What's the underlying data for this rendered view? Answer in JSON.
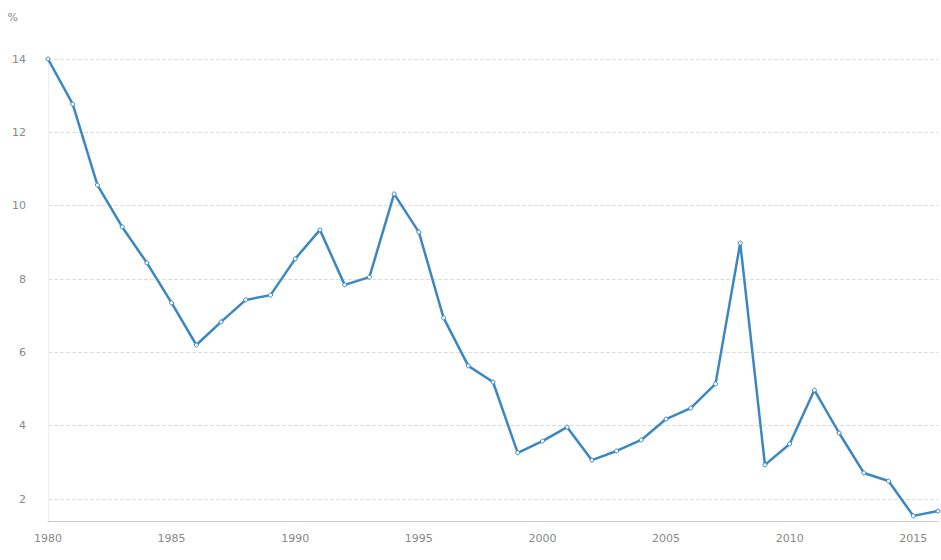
{
  "chart_data": {
    "type": "line",
    "y_label": "%",
    "x": [
      1980,
      1981,
      1982,
      1983,
      1984,
      1985,
      1986,
      1987,
      1988,
      1989,
      1990,
      1991,
      1992,
      1993,
      1994,
      1995,
      1996,
      1997,
      1998,
      1999,
      2000,
      2001,
      2002,
      2003,
      2004,
      2005,
      2006,
      2007,
      2008,
      2009,
      2010,
      2011,
      2012,
      2013,
      2014,
      2015,
      2016
    ],
    "values": [
      14.0,
      12.77,
      10.56,
      9.42,
      8.44,
      7.35,
      6.2,
      6.83,
      7.43,
      7.56,
      8.55,
      9.34,
      7.84,
      8.05,
      10.32,
      9.28,
      6.94,
      5.63,
      5.19,
      3.26,
      3.58,
      3.96,
      3.06,
      3.31,
      3.61,
      4.18,
      4.48,
      5.14,
      8.98,
      2.93,
      3.5,
      4.97,
      3.8,
      2.71,
      2.49,
      1.54,
      1.67
    ],
    "color": "#3a87c2",
    "marker": "circle",
    "xlim": [
      1980,
      2016
    ],
    "xticks": [
      1980,
      1985,
      1990,
      1995,
      2000,
      2005,
      2010,
      2015
    ],
    "ylim": [
      1.4,
      14
    ],
    "yticks": [
      2,
      4,
      6,
      8,
      10,
      12,
      14
    ],
    "grid": true
  }
}
